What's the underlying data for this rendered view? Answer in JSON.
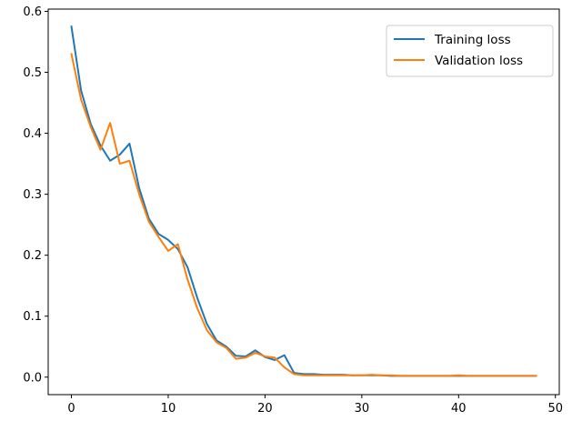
{
  "chart_data": {
    "type": "line",
    "title": "",
    "xlabel": "",
    "ylabel": "",
    "xlim": [
      -2.4,
      50.4
    ],
    "ylim": [
      -0.0287,
      0.6037
    ],
    "xticks": [
      0,
      10,
      20,
      30,
      40,
      50
    ],
    "yticks": [
      0.0,
      0.1,
      0.2,
      0.3,
      0.4,
      0.5,
      0.6
    ],
    "xtick_labels": [
      "0",
      "10",
      "20",
      "30",
      "40",
      "50"
    ],
    "ytick_labels": [
      "0.0",
      "0.1",
      "0.2",
      "0.3",
      "0.4",
      "0.5",
      "0.6"
    ],
    "grid": false,
    "legend_position": "top-right",
    "x": [
      0,
      1,
      2,
      3,
      4,
      5,
      6,
      7,
      8,
      9,
      10,
      11,
      12,
      13,
      14,
      15,
      16,
      17,
      18,
      19,
      20,
      21,
      22,
      23,
      24,
      25,
      26,
      27,
      28,
      29,
      30,
      31,
      32,
      33,
      34,
      35,
      36,
      37,
      38,
      39,
      40,
      41,
      42,
      43,
      44,
      45,
      46,
      47,
      48
    ],
    "series": [
      {
        "name": "Training loss",
        "color": "#1f77b4",
        "values": [
          0.575,
          0.47,
          0.415,
          0.38,
          0.355,
          0.365,
          0.383,
          0.31,
          0.26,
          0.235,
          0.225,
          0.21,
          0.18,
          0.13,
          0.087,
          0.06,
          0.05,
          0.035,
          0.034,
          0.044,
          0.033,
          0.028,
          0.036,
          0.007,
          0.005,
          0.005,
          0.004,
          0.004,
          0.004,
          0.003,
          0.003,
          0.003,
          0.003,
          0.002,
          0.002,
          0.002,
          0.002,
          0.002,
          0.002,
          0.002,
          0.002,
          0.002,
          0.002,
          0.002,
          0.002,
          0.002,
          0.002,
          0.002,
          0.002
        ]
      },
      {
        "name": "Validation loss",
        "color": "#ff7f0e",
        "values": [
          0.53,
          0.455,
          0.41,
          0.373,
          0.417,
          0.35,
          0.355,
          0.3,
          0.255,
          0.23,
          0.207,
          0.218,
          0.16,
          0.113,
          0.077,
          0.057,
          0.048,
          0.03,
          0.032,
          0.04,
          0.034,
          0.032,
          0.016,
          0.005,
          0.003,
          0.003,
          0.003,
          0.003,
          0.003,
          0.003,
          0.003,
          0.004,
          0.003,
          0.003,
          0.002,
          0.002,
          0.002,
          0.002,
          0.002,
          0.002,
          0.003,
          0.002,
          0.002,
          0.002,
          0.002,
          0.002,
          0.002,
          0.002,
          0.002
        ]
      }
    ]
  }
}
